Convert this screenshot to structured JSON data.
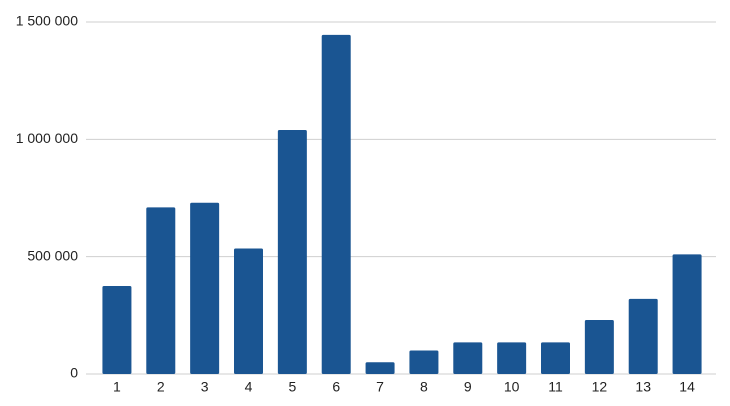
{
  "chart_data": {
    "type": "bar",
    "categories": [
      "1",
      "2",
      "3",
      "4",
      "5",
      "6",
      "7",
      "8",
      "9",
      "10",
      "11",
      "12",
      "13",
      "14"
    ],
    "values": [
      375000,
      710000,
      730000,
      535000,
      1040000,
      1445000,
      50000,
      100000,
      135000,
      135000,
      135000,
      230000,
      320000,
      510000
    ],
    "color": "#1a5592",
    "ylim": [
      0,
      1500000
    ],
    "yticks": [
      0,
      {
        "value": 500000,
        "label": "500 000"
      },
      {
        "value": 1000000,
        "label": "1 000 000"
      },
      {
        "value": 1500000,
        "label": "1 500 000"
      }
    ],
    "grid": true
  }
}
